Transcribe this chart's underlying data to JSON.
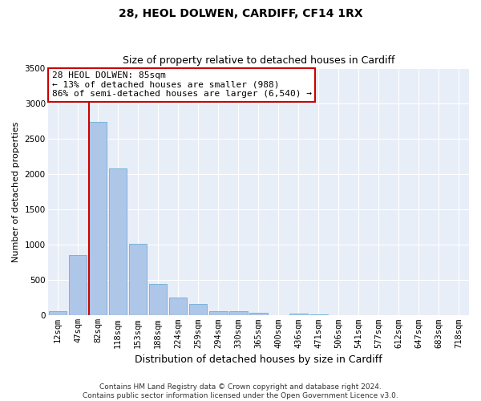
{
  "title1": "28, HEOL DOLWEN, CARDIFF, CF14 1RX",
  "title2": "Size of property relative to detached houses in Cardiff",
  "xlabel": "Distribution of detached houses by size in Cardiff",
  "ylabel": "Number of detached properties",
  "categories": [
    "12sqm",
    "47sqm",
    "82sqm",
    "118sqm",
    "153sqm",
    "188sqm",
    "224sqm",
    "259sqm",
    "294sqm",
    "330sqm",
    "365sqm",
    "400sqm",
    "436sqm",
    "471sqm",
    "506sqm",
    "541sqm",
    "577sqm",
    "612sqm",
    "647sqm",
    "683sqm",
    "718sqm"
  ],
  "values": [
    60,
    850,
    2730,
    2075,
    1010,
    450,
    250,
    160,
    60,
    60,
    40,
    0,
    30,
    20,
    0,
    0,
    0,
    0,
    0,
    0,
    0
  ],
  "bar_color": "#aec6e8",
  "bar_edge_color": "#6baed6",
  "vline_color": "#cc0000",
  "vline_x_index": 2,
  "annotation_line1": "28 HEOL DOLWEN: 85sqm",
  "annotation_line2": "← 13% of detached houses are smaller (988)",
  "annotation_line3": "86% of semi-detached houses are larger (6,540) →",
  "annotation_box_facecolor": "#ffffff",
  "annotation_box_edgecolor": "#cc0000",
  "ylim_max": 3500,
  "yticks": [
    0,
    500,
    1000,
    1500,
    2000,
    2500,
    3000,
    3500
  ],
  "bg_color": "#e8eef8",
  "grid_color": "#ffffff",
  "footer_text": "Contains HM Land Registry data © Crown copyright and database right 2024.\nContains public sector information licensed under the Open Government Licence v3.0.",
  "title1_fontsize": 10,
  "title2_fontsize": 9,
  "xlabel_fontsize": 9,
  "ylabel_fontsize": 8,
  "tick_fontsize": 7.5,
  "annotation_fontsize": 8,
  "footer_fontsize": 6.5
}
